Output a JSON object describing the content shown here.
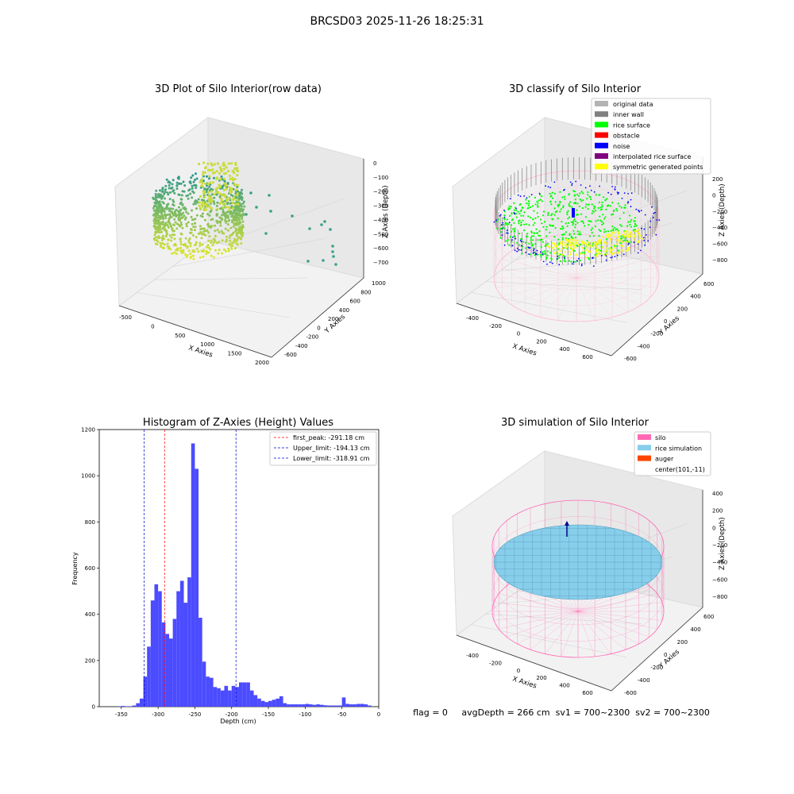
{
  "suptitle": "BRCSD03 2025-11-26 18:25:31",
  "status_line": "flag = 0     avgDepth = 266 cm  sv1 = 700~2300  sv2 = 700~2300",
  "colors": {
    "rice_green": "#00ff00",
    "inner_wall": "#808080",
    "original": "#b3b3b3",
    "obstacle": "#ff0000",
    "noise": "#0000ff",
    "interp": "#800080",
    "symmetric": "#ffff00",
    "silo_pink": "#ff69b4",
    "rice_blue": "#87ceeb",
    "auger": "#ff4500",
    "hist_bar": "#4b4bff",
    "peak_line": "#ff0000",
    "limit_line": "#0000cc"
  },
  "panels": {
    "raw": {
      "title": "3D Plot of Silo Interior(row data)",
      "xlabel": "X Axies",
      "ylabel": "Y Axies",
      "zlabel": "Z Axies (Depth)",
      "xticks": [
        "-500",
        "0",
        "500",
        "1000",
        "1500",
        "2000"
      ],
      "yticks": [
        "-600",
        "-400",
        "-200",
        "0",
        "200",
        "400",
        "600",
        "800",
        "1000"
      ],
      "zticks": [
        "0",
        "−100",
        "−200",
        "−300",
        "−400",
        "−500",
        "−600",
        "−700"
      ]
    },
    "classify": {
      "title": "3D classify of Silo Interior",
      "xlabel": "X Axies",
      "ylabel": "Y Axies",
      "zlabel": "Z Axies (Depth)",
      "xticks": [
        "-400",
        "-200",
        "0",
        "200",
        "400",
        "600"
      ],
      "yticks": [
        "-600",
        "-400",
        "-200",
        "0",
        "200",
        "400",
        "600"
      ],
      "zticks": [
        "200",
        "0",
        "−200",
        "−400",
        "−600",
        "−800"
      ],
      "legend": [
        {
          "label": "original data",
          "color": "#b3b3b3"
        },
        {
          "label": "inner wall",
          "color": "#808080"
        },
        {
          "label": "rice surface",
          "color": "#00ff00"
        },
        {
          "label": "obstacle",
          "color": "#ff0000"
        },
        {
          "label": "noise",
          "color": "#0000ff"
        },
        {
          "label": "interpolated rice surface",
          "color": "#800080"
        },
        {
          "label": "symmetric generated points",
          "color": "#ffff00"
        }
      ]
    },
    "simulation": {
      "title": "3D simulation of Silo Interior",
      "xlabel": "X Axies",
      "ylabel": "Y Axies",
      "zlabel": "Z Axies (Depth)",
      "xticks": [
        "-400",
        "-200",
        "0",
        "200",
        "400",
        "600"
      ],
      "yticks": [
        "-600",
        "-400",
        "-200",
        "0",
        "200",
        "400",
        "600"
      ],
      "zticks": [
        "400",
        "200",
        "0",
        "−200",
        "−400",
        "−600",
        "−800"
      ],
      "legend": [
        {
          "label": "silo",
          "color": "#ff69b4"
        },
        {
          "label": "rice simulation",
          "color": "#87ceeb"
        },
        {
          "label": "auger",
          "color": "#ff4500"
        },
        {
          "label": "center(101,-11)",
          "color": ""
        }
      ]
    }
  },
  "chart_data": {
    "type": "bar",
    "title": "Histogram of Z-Axies (Height) Values",
    "xlabel": "Depth (cm)",
    "ylabel": "Frequency",
    "xlim": [
      -380,
      0
    ],
    "ylim": [
      0,
      1200
    ],
    "xticks": [
      -350,
      -300,
      -250,
      -200,
      -150,
      -100,
      -50,
      0
    ],
    "yticks": [
      0,
      200,
      400,
      600,
      800,
      1000,
      1200
    ],
    "bin_width": 5,
    "bins_start": [
      -355,
      -350,
      -345,
      -340,
      -335,
      -330,
      -325,
      -320,
      -315,
      -310,
      -305,
      -300,
      -295,
      -290,
      -285,
      -280,
      -275,
      -270,
      -265,
      -260,
      -255,
      -250,
      -245,
      -240,
      -235,
      -230,
      -225,
      -220,
      -215,
      -210,
      -205,
      -200,
      -195,
      -190,
      -185,
      -180,
      -175,
      -170,
      -165,
      -160,
      -155,
      -150,
      -145,
      -140,
      -135,
      -130,
      -125,
      -120,
      -115,
      -110,
      -105,
      -100,
      -95,
      -90,
      -85,
      -80,
      -75,
      -70,
      -65,
      -60,
      -55,
      -50,
      -45,
      -40,
      -35,
      -30,
      -25,
      -20,
      -15
    ],
    "values": [
      2,
      3,
      1,
      2,
      5,
      15,
      35,
      130,
      260,
      460,
      530,
      500,
      365,
      315,
      295,
      380,
      500,
      545,
      450,
      560,
      1140,
      1030,
      385,
      195,
      130,
      125,
      85,
      80,
      70,
      90,
      70,
      90,
      85,
      105,
      105,
      105,
      70,
      50,
      35,
      25,
      20,
      25,
      30,
      35,
      45,
      15,
      10,
      10,
      10,
      10,
      10,
      12,
      10,
      8,
      10,
      8,
      6,
      5,
      5,
      5,
      5,
      40,
      12,
      10,
      10,
      12,
      12,
      10,
      5
    ],
    "lines": [
      {
        "name": "first_peak: -291.18 cm",
        "x": -291.18,
        "color": "#ff0000"
      },
      {
        "name": "Upper_limit: -194.13 cm",
        "x": -194.13,
        "color": "#0000cc"
      },
      {
        "name": "Lower_limit: -318.91 cm",
        "x": -318.91,
        "color": "#0000cc"
      }
    ],
    "legend_position": "top-right"
  }
}
